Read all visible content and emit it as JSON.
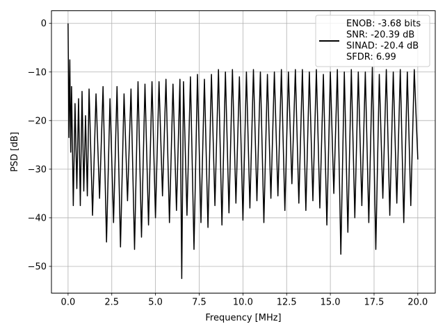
{
  "chart_data": {
    "type": "line",
    "xlabel": "Frequency [MHz]",
    "ylabel": "PSD [dB]",
    "xlim": [
      -0.95,
      21.0
    ],
    "ylim": [
      -55.5,
      2.6
    ],
    "xticks": [
      0.0,
      2.5,
      5.0,
      7.5,
      10.0,
      12.5,
      15.0,
      17.5,
      20.0
    ],
    "xtick_labels": [
      "0.0",
      "2.5",
      "5.0",
      "7.5",
      "10.0",
      "12.5",
      "15.0",
      "17.5",
      "20.0"
    ],
    "yticks": [
      0,
      -10,
      -20,
      -30,
      -40,
      -50
    ],
    "ytick_labels": [
      "0",
      "−10",
      "−20",
      "−30",
      "−40",
      "−50"
    ],
    "grid": true,
    "legend": {
      "placement": "upper right",
      "color": "#000000",
      "entries": [
        "ENOB: -3.68 bits",
        "SNR: -20.39 dB",
        "SINAD: -20.4 dB",
        "SFDR: 6.99"
      ]
    },
    "series": [
      {
        "color": "#000000",
        "x": [
          0.0,
          0.05,
          0.1,
          0.15,
          0.2,
          0.3,
          0.4,
          0.5,
          0.6,
          0.7,
          0.8,
          0.9,
          1.0,
          1.1,
          1.2,
          1.4,
          1.6,
          1.8,
          2.0,
          2.2,
          2.4,
          2.6,
          2.8,
          3.0,
          3.2,
          3.4,
          3.6,
          3.8,
          4.0,
          4.2,
          4.4,
          4.6,
          4.8,
          5.0,
          5.2,
          5.4,
          5.6,
          5.8,
          6.0,
          6.2,
          6.4,
          6.5,
          6.6,
          6.8,
          7.0,
          7.2,
          7.4,
          7.6,
          7.8,
          8.0,
          8.2,
          8.4,
          8.6,
          8.8,
          9.0,
          9.2,
          9.4,
          9.6,
          9.8,
          10.0,
          10.2,
          10.4,
          10.6,
          10.8,
          11.0,
          11.2,
          11.4,
          11.6,
          11.8,
          12.0,
          12.2,
          12.4,
          12.6,
          12.8,
          13.0,
          13.2,
          13.4,
          13.6,
          13.8,
          14.0,
          14.2,
          14.4,
          14.6,
          14.8,
          15.0,
          15.2,
          15.4,
          15.6,
          15.8,
          16.0,
          16.2,
          16.4,
          16.6,
          16.8,
          17.0,
          17.2,
          17.4,
          17.6,
          17.8,
          18.0,
          18.2,
          18.4,
          18.6,
          18.8,
          19.0,
          19.2,
          19.4,
          19.6,
          19.8,
          20.0
        ],
        "y": [
          0.0,
          -23.5,
          -7.5,
          -26.5,
          -13.0,
          -37.5,
          -16.5,
          -34.0,
          -15.5,
          -37.5,
          -14.0,
          -34.5,
          -19.0,
          -35.5,
          -13.5,
          -39.5,
          -14.5,
          -36.0,
          -13.0,
          -45.0,
          -15.5,
          -41.0,
          -13.0,
          -46.0,
          -14.5,
          -36.5,
          -13.5,
          -46.5,
          -12.0,
          -44.0,
          -12.5,
          -41.5,
          -12.0,
          -40.0,
          -12.0,
          -35.5,
          -11.5,
          -41.0,
          -12.5,
          -38.5,
          -11.5,
          -52.5,
          -12.0,
          -39.5,
          -11.0,
          -46.5,
          -10.5,
          -41.0,
          -11.5,
          -42.0,
          -10.5,
          -37.5,
          -9.5,
          -41.5,
          -10.0,
          -39.0,
          -9.5,
          -37.0,
          -11.0,
          -40.5,
          -10.0,
          -38.0,
          -9.5,
          -36.5,
          -10.0,
          -41.0,
          -10.5,
          -36.0,
          -10.0,
          -35.5,
          -9.5,
          -38.5,
          -10.0,
          -33.0,
          -9.5,
          -37.0,
          -9.5,
          -38.5,
          -10.0,
          -36.5,
          -9.5,
          -38.0,
          -10.5,
          -41.5,
          -10.0,
          -35.0,
          -9.5,
          -47.5,
          -10.0,
          -43.0,
          -9.5,
          -40.0,
          -10.0,
          -37.5,
          -10.0,
          -41.0,
          -9.0,
          -46.5,
          -10.5,
          -36.0,
          -9.5,
          -39.5,
          -10.0,
          -37.0,
          -9.5,
          -41.0,
          -10.0,
          -37.5,
          -9.5,
          -28.0
        ]
      }
    ]
  }
}
